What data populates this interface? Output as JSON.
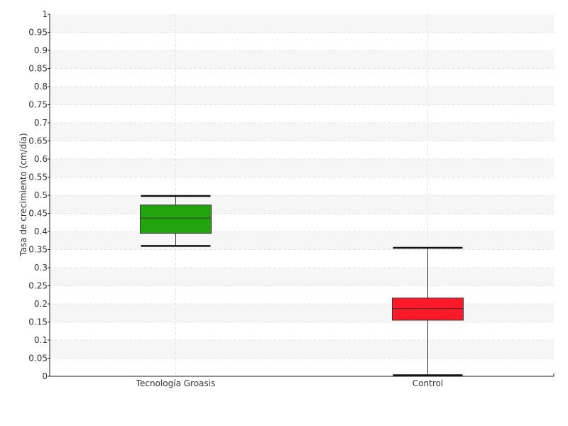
{
  "chart_data": {
    "type": "box",
    "ylabel": "Tasa de crecimiento (cm/día)",
    "xlabel": "",
    "ylim": [
      0,
      1
    ],
    "y_ticks": [
      "0",
      "0.05",
      "0.1",
      "0.15",
      "0.2",
      "0.25",
      "0.3",
      "0.35",
      "0.4",
      "0.45",
      "0.5",
      "0.55",
      "0.6",
      "0.65",
      "0.7",
      "0.75",
      "0.8",
      "0.85",
      "0.9",
      "0.95",
      "1"
    ],
    "grid": true,
    "categories": [
      "Tecnología Groasis",
      "Control"
    ],
    "boxes": [
      {
        "category": "Tecnología Groasis",
        "min": 0.36,
        "q1": 0.395,
        "median": 0.437,
        "q3": 0.473,
        "max": 0.498,
        "color": "#22a40e"
      },
      {
        "category": "Control",
        "min": 0.003,
        "q1": 0.155,
        "median": 0.187,
        "q3": 0.216,
        "max": 0.355,
        "color": "#ff1a2a"
      }
    ]
  }
}
